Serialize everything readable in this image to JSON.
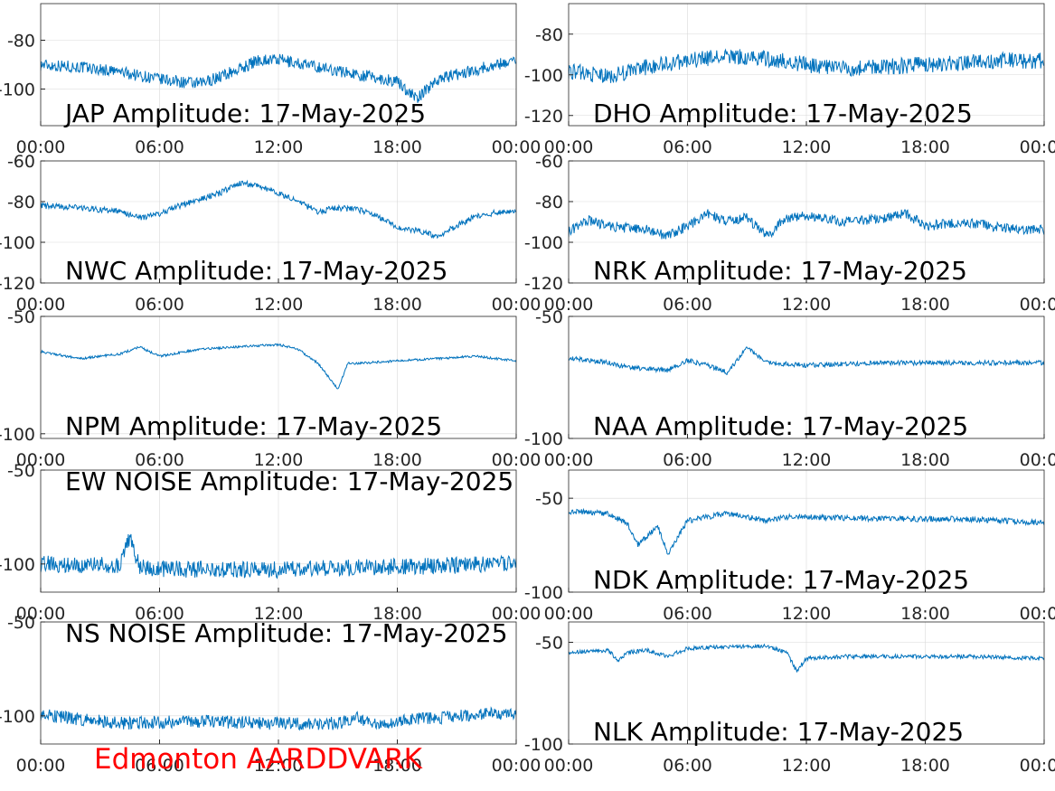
{
  "footer": "Edmonton AARDDVARK",
  "colors": {
    "line": "#0072bd",
    "axis": "#262626",
    "grid": "#d9d9d9",
    "footer": "#ff0000"
  },
  "chart_data": [
    {
      "type": "line",
      "title": "JAP Amplitude: 17-May-2025",
      "xticks": [
        "00:00",
        "06:00",
        "12:00",
        "18:00",
        "00:00"
      ],
      "ylim": [
        -115,
        -65
      ],
      "yticks": [
        "-80",
        "-100"
      ],
      "yticks_val": [
        -80,
        -100
      ],
      "grid": true,
      "series": [
        {
          "x": [
            0,
            2,
            4,
            6,
            8,
            10,
            11,
            12,
            14,
            16,
            18,
            19,
            20,
            22,
            24
          ],
          "y": [
            -90,
            -91,
            -93,
            -96,
            -98,
            -92,
            -88,
            -88,
            -91,
            -94,
            -97,
            -104,
            -96,
            -92,
            -88
          ],
          "noise": 5
        }
      ]
    },
    {
      "type": "line",
      "title": "DHO Amplitude: 17-May-2025",
      "xticks": [
        "00:00",
        "06:00",
        "12:00",
        "18:00",
        "00:00"
      ],
      "ylim": [
        -125,
        -65
      ],
      "yticks": [
        "-80",
        "-100",
        "-120"
      ],
      "yticks_val": [
        -80,
        -100,
        -120
      ],
      "grid": true,
      "series": [
        {
          "x": [
            0,
            2,
            4,
            6,
            8,
            10,
            12,
            14,
            16,
            18,
            20,
            22,
            24
          ],
          "y": [
            -98,
            -101,
            -96,
            -93,
            -91,
            -92,
            -95,
            -97,
            -96,
            -95,
            -94,
            -93,
            -93
          ],
          "noise": 8
        }
      ]
    },
    {
      "type": "line",
      "title": "NWC Amplitude: 17-May-2025",
      "xticks": [
        "00:00",
        "06:00",
        "12:00",
        "18:00",
        "00:00"
      ],
      "ylim": [
        -120,
        -60
      ],
      "yticks": [
        "-60",
        "-80",
        "-100",
        "-120"
      ],
      "yticks_val": [
        -60,
        -80,
        -100,
        -120
      ],
      "grid": true,
      "series": [
        {
          "x": [
            0,
            2,
            4,
            5,
            6,
            7,
            9,
            10,
            11,
            13,
            14,
            15,
            16,
            17,
            18,
            19,
            20,
            21,
            22,
            24
          ],
          "y": [
            -82,
            -83,
            -85,
            -88,
            -86,
            -82,
            -76,
            -71,
            -72,
            -80,
            -85,
            -83,
            -84,
            -87,
            -93,
            -94,
            -97,
            -92,
            -87,
            -84
          ],
          "noise": 3
        }
      ]
    },
    {
      "type": "line",
      "title": "NRK Amplitude: 17-May-2025",
      "xticks": [
        "00:00",
        "06:00",
        "12:00",
        "18:00",
        "00:00"
      ],
      "ylim": [
        -120,
        -60
      ],
      "yticks": [
        "-60",
        "-80",
        "-100",
        "-120"
      ],
      "yticks_val": [
        -60,
        -80,
        -100,
        -120
      ],
      "grid": true,
      "series": [
        {
          "x": [
            0,
            1,
            2,
            4,
            5,
            6,
            7,
            8,
            9,
            10,
            11,
            12,
            14,
            16,
            17,
            18,
            20,
            22,
            24
          ],
          "y": [
            -95,
            -89,
            -92,
            -94,
            -97,
            -92,
            -86,
            -90,
            -88,
            -97,
            -88,
            -87,
            -90,
            -88,
            -86,
            -92,
            -90,
            -93,
            -94
          ],
          "noise": 5
        }
      ]
    },
    {
      "type": "line",
      "title": "NPM Amplitude: 17-May-2025",
      "xticks": [
        "00:00",
        "06:00",
        "12:00",
        "18:00",
        "00:00"
      ],
      "ylim": [
        -102,
        -50
      ],
      "yticks": [
        "-50",
        "-100"
      ],
      "yticks_val": [
        -50,
        -100
      ],
      "grid": true,
      "series": [
        {
          "x": [
            0,
            2,
            4,
            5,
            6,
            8,
            10,
            12,
            13,
            14,
            15,
            15.5,
            16,
            18,
            20,
            22,
            24
          ],
          "y": [
            -65,
            -68,
            -66,
            -63,
            -67,
            -64,
            -63,
            -62,
            -64,
            -70,
            -81,
            -70,
            -70,
            -69,
            -68,
            -67,
            -69
          ],
          "noise": 1
        }
      ]
    },
    {
      "type": "line",
      "title": "NAA Amplitude: 17-May-2025",
      "xticks": [
        "00:00",
        "06:00",
        "12:00",
        "18:00",
        "00:00"
      ],
      "ylim": [
        -100,
        -50
      ],
      "yticks": [
        "-50",
        "-100"
      ],
      "yticks_val": [
        -50,
        -100
      ],
      "grid": true,
      "series": [
        {
          "x": [
            0,
            2,
            3,
            5,
            6,
            7,
            8,
            9,
            10,
            12,
            16,
            20,
            24
          ],
          "y": [
            -67,
            -69,
            -71,
            -72,
            -68,
            -70,
            -73,
            -63,
            -69,
            -70,
            -69,
            -69,
            -69
          ],
          "noise": 2
        }
      ]
    },
    {
      "type": "line",
      "title": "EW NOISE Amplitude: 17-May-2025",
      "xticks": [
        "00:00",
        "06:00",
        "12:00",
        "18:00",
        "00:00"
      ],
      "ylim": [
        -115,
        -50
      ],
      "yticks": [
        "-50",
        "-100"
      ],
      "yticks_val": [
        -50,
        -100
      ],
      "grid": true,
      "series": [
        {
          "x": [
            0,
            4,
            4.5,
            5,
            8,
            12,
            16,
            20,
            24
          ],
          "y": [
            -100,
            -101,
            -85,
            -102,
            -103,
            -103,
            -102,
            -101,
            -100
          ],
          "noise": 9
        }
      ]
    },
    {
      "type": "line",
      "title": "NDK Amplitude: 17-May-2025",
      "xticks": [
        "00:00",
        "06:00",
        "12:00",
        "18:00",
        "00:00"
      ],
      "ylim": [
        -100,
        -35
      ],
      "yticks": [
        "-50",
        "-100"
      ],
      "yticks_val": [
        -50,
        -100
      ],
      "grid": true,
      "series": [
        {
          "x": [
            0,
            2,
            3,
            3.5,
            4.5,
            5,
            6,
            8,
            9,
            10,
            11,
            12,
            16,
            20,
            24
          ],
          "y": [
            -57,
            -58,
            -64,
            -75,
            -65,
            -80,
            -62,
            -58,
            -60,
            -62,
            -60,
            -60,
            -61,
            -61,
            -63
          ],
          "noise": 3
        }
      ]
    },
    {
      "type": "line",
      "title": "NS NOISE Amplitude: 17-May-2025",
      "xticks": [
        "00:00",
        "06:00",
        "12:00",
        "18:00",
        "00:00"
      ],
      "ylim": [
        -115,
        -50
      ],
      "yticks": [
        "-50",
        "-100"
      ],
      "yticks_val": [
        -50,
        -100
      ],
      "grid": true,
      "series": [
        {
          "x": [
            0,
            2,
            4,
            8,
            12,
            14,
            15,
            16,
            17,
            18,
            20,
            24
          ],
          "y": [
            -99,
            -102,
            -104,
            -103,
            -104,
            -104,
            -104,
            -101,
            -104,
            -103,
            -101,
            -98
          ],
          "noise": 7
        }
      ]
    },
    {
      "type": "line",
      "title": "NLK Amplitude: 17-May-2025",
      "xticks": [
        "00:00",
        "06:00",
        "12:00",
        "18:00",
        "00:00"
      ],
      "ylim": [
        -100,
        -40
      ],
      "yticks": [
        "-50",
        "-100"
      ],
      "yticks_val": [
        -50,
        -100
      ],
      "grid": true,
      "series": [
        {
          "x": [
            0,
            2,
            2.5,
            3,
            4,
            5,
            6,
            8,
            10,
            11,
            11.5,
            12,
            14,
            16,
            20,
            24
          ],
          "y": [
            -55,
            -54,
            -59,
            -55,
            -54,
            -57,
            -53,
            -52,
            -52,
            -55,
            -64,
            -58,
            -57,
            -57,
            -57,
            -58
          ],
          "noise": 2
        }
      ]
    }
  ]
}
